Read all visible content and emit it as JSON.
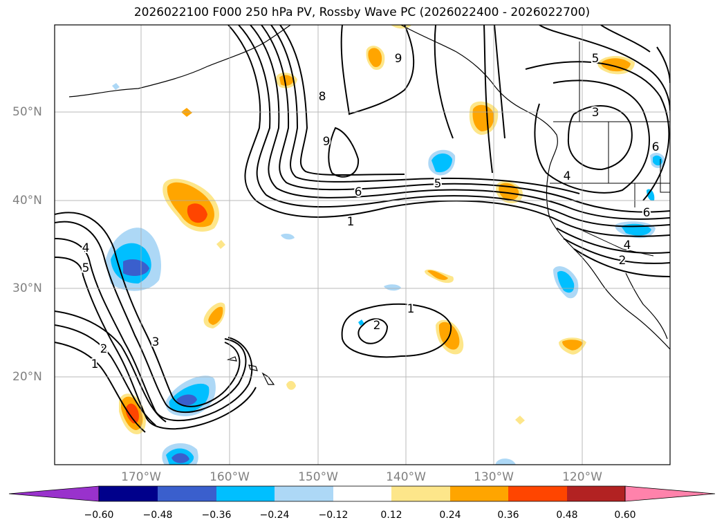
{
  "title": "2026022100 F000 250 hPa PV, Rossby Wave PC (2026022400 - 2026022700)",
  "lat_labels": [
    "50°N",
    "40°N",
    "30°N",
    "20°N"
  ],
  "lon_labels": [
    "170°W",
    "160°W",
    "150°W",
    "140°W",
    "130°W",
    "120°W"
  ],
  "colorbar": {
    "ticks": [
      "−0.60",
      "−0.48",
      "−0.36",
      "−0.24",
      "−0.12",
      "0.12",
      "0.24",
      "0.36",
      "0.48",
      "0.60"
    ],
    "colors": [
      "#9932cc",
      "#00008b",
      "#3a5fcd",
      "#00bfff",
      "#add8f6",
      "#ffffff",
      "#fde68a",
      "#ffa500",
      "#ff4500",
      "#b22222",
      "#ff82ab"
    ]
  },
  "contour_labels": [
    "9",
    "8",
    "9",
    "6",
    "5",
    "1",
    "5",
    "3",
    "4",
    "6",
    "6",
    "4",
    "2",
    "4",
    "5",
    "3",
    "2",
    "1",
    "1",
    "2"
  ]
}
